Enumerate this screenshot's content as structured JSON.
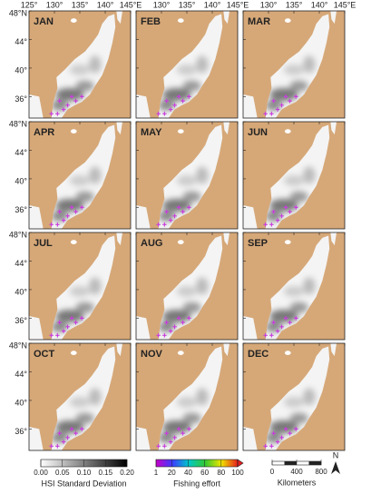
{
  "months": [
    "JAN",
    "FEB",
    "MAR",
    "APR",
    "MAY",
    "JUN",
    "JUL",
    "AUG",
    "SEP",
    "OCT",
    "NOV",
    "DEC"
  ],
  "lon_labels": [
    "125°",
    "130°",
    "135°",
    "140°",
    "145°E"
  ],
  "lat_labels": [
    "48°N",
    "44°",
    "40°",
    "36°"
  ],
  "hsi_legend": {
    "title": "HSI Standard Deviation",
    "ticks": [
      {
        "value": 0,
        "label": "0.00"
      },
      {
        "value": 0.05,
        "label": "0.05"
      },
      {
        "value": 0.1,
        "label": "0.10"
      },
      {
        "value": 0.15,
        "label": "0.15"
      },
      {
        "value": 0.2,
        "label": "0.20"
      }
    ]
  },
  "effort_legend": {
    "title": "Fishing effort",
    "ticks": [
      1,
      20,
      40,
      60,
      80,
      100
    ]
  },
  "scale_bar": {
    "title": "Kilometers",
    "ticks": [
      0,
      400,
      800
    ],
    "north": "N"
  }
}
